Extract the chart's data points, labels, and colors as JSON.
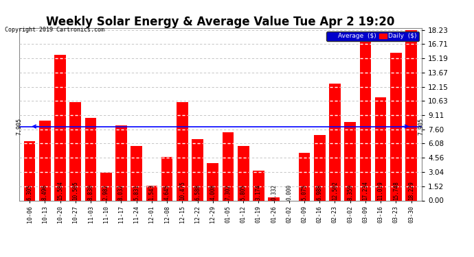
{
  "title": "Weekly Solar Energy & Average Value Tue Apr 2 19:20",
  "copyright": "Copyright 2019 Cartronics.com",
  "categories": [
    "10-06",
    "10-13",
    "10-20",
    "10-27",
    "11-03",
    "11-10",
    "11-17",
    "11-24",
    "12-01",
    "12-08",
    "12-15",
    "12-22",
    "12-29",
    "01-05",
    "01-12",
    "01-19",
    "01-26",
    "02-02",
    "02-09",
    "02-16",
    "02-23",
    "03-02",
    "03-09",
    "03-16",
    "03-23",
    "03-30"
  ],
  "values": [
    6.305,
    8.496,
    15.584,
    10.505,
    8.83,
    2.982,
    8.032,
    5.831,
    1.543,
    4.645,
    10.475,
    6.588,
    4.008,
    7.302,
    5.805,
    3.174,
    0.332,
    0.0,
    5.075,
    6.988,
    12.502,
    8.359,
    17.234,
    11.019,
    15.748,
    18.229
  ],
  "average_value": 7.905,
  "bar_color": "#ff0000",
  "average_line_color": "#0000ff",
  "grid_color": "#bbbbbb",
  "background_color": "#ffffff",
  "plot_bg_color": "#ffffff",
  "y_tick_labels": [
    "0.00",
    "1.52",
    "3.04",
    "4.56",
    "6.08",
    "7.60",
    "9.11",
    "10.63",
    "12.15",
    "13.67",
    "15.19",
    "16.71",
    "18.23"
  ],
  "y_tick_values": [
    0.0,
    1.52,
    3.04,
    4.56,
    6.08,
    7.6,
    9.11,
    10.63,
    12.15,
    13.67,
    15.19,
    16.71,
    18.23
  ],
  "ylim": [
    0,
    18.4
  ],
  "legend_avg_color": "#0000cc",
  "legend_daily_color": "#ff0000",
  "title_fontsize": 12,
  "value_label_fontsize": 5.5
}
